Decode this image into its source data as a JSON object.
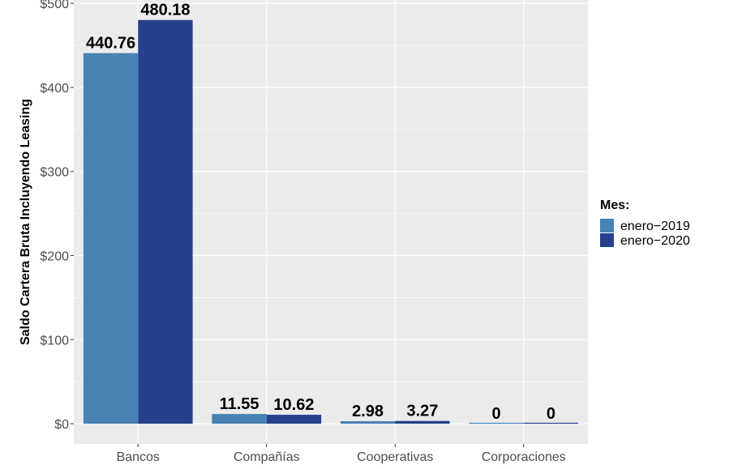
{
  "chart_data": {
    "type": "bar",
    "categories": [
      "Bancos",
      "Compañías",
      "Cooperativas",
      "Corporaciones"
    ],
    "series": [
      {
        "name": "enero−2019",
        "values": [
          440.76,
          11.55,
          2.98,
          0
        ],
        "labels": [
          "440.76",
          "11.55",
          "2.98",
          "0"
        ],
        "color": "#4682B4"
      },
      {
        "name": "enero−2020",
        "values": [
          480.18,
          10.62,
          3.27,
          0
        ],
        "labels": [
          "480.18",
          "10.62",
          "3.27",
          "0"
        ],
        "color": "#27408B"
      }
    ],
    "title": "",
    "xlabel": "",
    "ylabel": "Saldo Cartera Bruta Incluyendo Leasing",
    "ylim": [
      -24,
      504
    ],
    "yticks": [
      0,
      100,
      200,
      300,
      400,
      500
    ],
    "ytick_labels": [
      "$0",
      "$100",
      "$200",
      "$300",
      "$400",
      "$500"
    ],
    "legend_title": "Mes:",
    "legend_position": "right",
    "grid": true,
    "panel_background": "#EBEBEB",
    "grid_color": "#FFFFFF"
  }
}
